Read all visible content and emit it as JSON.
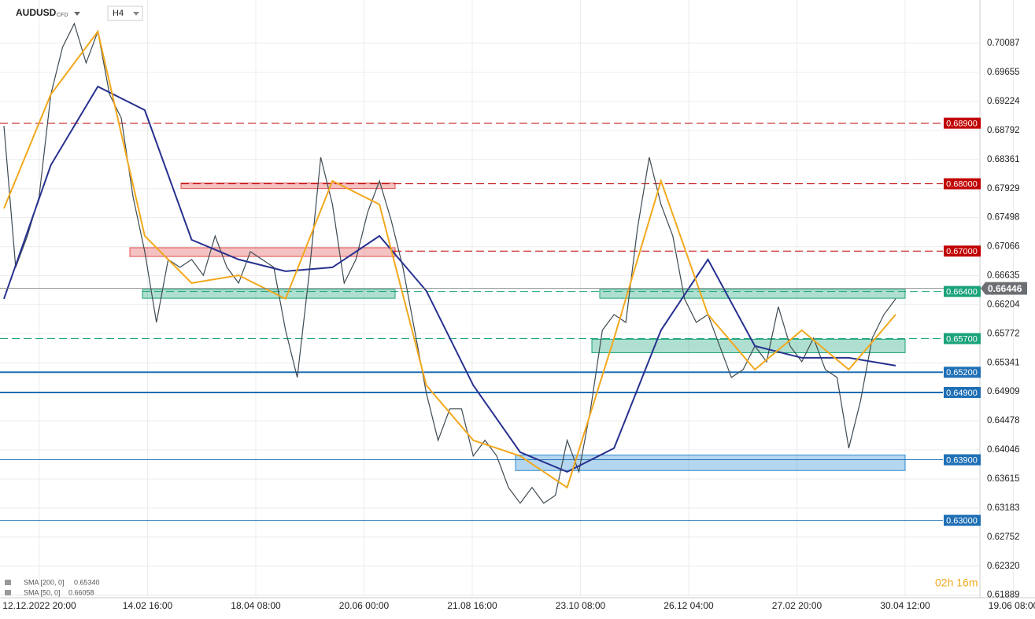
{
  "chart_data": {
    "type": "line",
    "symbol": "AUDUSD",
    "instrument": "CFD",
    "timeframe": "H4",
    "countdown": "02h 16m",
    "ylim": [
      0.6185,
      0.7073
    ],
    "yticks": [
      0.70087,
      0.69655,
      0.69224,
      0.68792,
      0.68361,
      0.67929,
      0.67498,
      0.67066,
      0.66635,
      0.66204,
      0.65772,
      0.65341,
      0.64909,
      0.64478,
      0.64046,
      0.63615,
      0.63183,
      0.62752,
      {
        "value": 0.6232,
        "label": "0.62320"
      },
      0.61889
    ],
    "x_labels": [
      "12.12.2022  20:00",
      "14.02  16:00",
      "18.04  08:00",
      "20.06  00:00",
      "21.08  16:00",
      "23.10  08:00",
      "26.12  04:00",
      "27.02  20:00",
      "30.04  12:00",
      "19.06  08:00"
    ],
    "grid": true,
    "current_price": 0.66446,
    "series": [
      {
        "name": "AUDUSD",
        "color": "#3d4a52",
        "values": [
          0.68861,
          0.66758,
          0.67225,
          0.67809,
          0.69328,
          0.70029,
          0.70379,
          0.69795,
          0.70262,
          0.69328,
          0.68977,
          0.67809,
          0.66992,
          0.65941,
          0.66875,
          0.66758,
          0.66875,
          0.66641,
          0.67225,
          0.66758,
          0.66525,
          0.66992,
          0.66875,
          0.66758,
          0.65824,
          0.65123,
          0.66641,
          0.68393,
          0.67693,
          0.66525,
          0.66875,
          0.67576,
          0.68043,
          0.67459,
          0.66758,
          0.65824,
          0.64889,
          0.64189,
          0.64656,
          0.64656,
          0.63955,
          0.64189,
          0.63955,
          0.63488,
          0.63254,
          0.63488,
          0.63254,
          0.63371,
          0.64189,
          0.63721,
          0.64656,
          0.65824,
          0.66057,
          0.65941,
          0.67342,
          0.68393,
          0.67693,
          0.67225,
          0.66291,
          0.65941,
          0.66057,
          0.6559,
          0.65123,
          0.6524,
          0.6559,
          0.65357,
          0.66174,
          0.6559,
          0.65357,
          0.65707,
          0.6524,
          0.65123,
          0.64072,
          0.64773,
          0.65707,
          0.66057,
          0.66291
        ]
      },
      {
        "name": "SMA [200, 0]",
        "legend_value": "0.65340",
        "color": "#27318f",
        "values": [
          0.66291,
          0.68277,
          0.69445,
          0.69094,
          0.67167,
          0.66875,
          0.667,
          0.66758,
          0.67225,
          0.66408,
          0.65006,
          0.64013,
          0.63721,
          0.64072,
          0.65824,
          0.66875,
          0.6559,
          0.65415,
          0.65415,
          0.65298
        ]
      },
      {
        "name": "SMA [50, 0]",
        "legend_value": "0.66058",
        "color": "#f2a81d",
        "values": [
          0.67634,
          0.69328,
          0.70262,
          0.67225,
          0.66525,
          0.66641,
          0.66291,
          0.68043,
          0.67693,
          0.65006,
          0.64189,
          0.63955,
          0.63488,
          0.65707,
          0.68043,
          0.66057,
          0.6524,
          0.65824,
          0.6524,
          0.66057
        ]
      }
    ],
    "levels": [
      {
        "value": 0.689,
        "label": "0.68900",
        "color": "#c00000",
        "style": "dashed"
      },
      {
        "value": 0.68,
        "label": "0.68000",
        "color": "#c00000",
        "style": "dashed"
      },
      {
        "value": 0.67,
        "label": "0.67000",
        "color": "#c00000",
        "style": "dashed"
      },
      {
        "value": 0.664,
        "label": "0.66400",
        "color": "#1aa37a",
        "style": "dashed"
      },
      {
        "value": 0.657,
        "label": "0.65700",
        "color": "#1aa37a",
        "style": "dashed"
      },
      {
        "value": 0.652,
        "label": "0.65200",
        "color": "#1f6fb5",
        "style": "thick"
      },
      {
        "value": 0.649,
        "label": "0.64900",
        "color": "#1f6fb5",
        "style": "thick"
      },
      {
        "value": 0.639,
        "label": "0.63900",
        "color": "#1f6fb5",
        "style": "thin"
      },
      {
        "value": 0.63,
        "label": "0.63000",
        "color": "#1f6fb5",
        "style": "thin"
      }
    ],
    "zones": [
      {
        "low": 0.6793,
        "high": 0.6801,
        "color": "#e05050"
      },
      {
        "low": 0.6692,
        "high": 0.6705,
        "color": "#e05050"
      },
      {
        "low": 0.663,
        "high": 0.6643,
        "color": "#1aa37a"
      },
      {
        "low": 0.6549,
        "high": 0.6569,
        "color": "#1aa37a"
      },
      {
        "low": 0.6374,
        "high": 0.6397,
        "color": "#2a8ad0"
      }
    ]
  }
}
